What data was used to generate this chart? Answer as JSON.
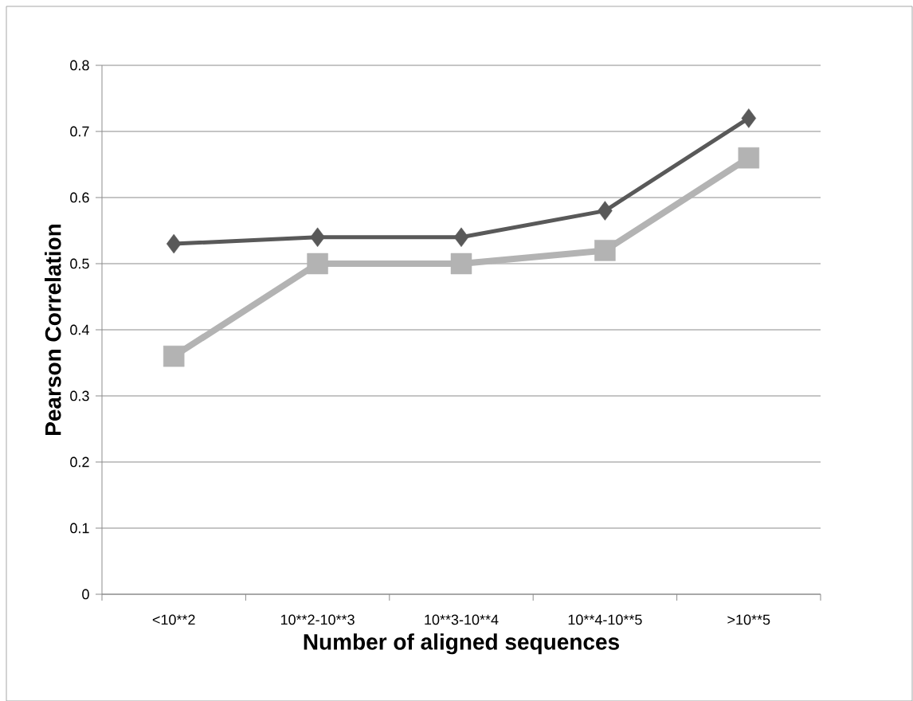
{
  "chart_data": {
    "type": "line",
    "xlabel": "Number of aligned sequences",
    "ylabel": "Pearson Correlation",
    "categories": [
      "<10**2",
      "10**2-10**3",
      "10**3-10**4",
      "10**4-10**5",
      ">10**5"
    ],
    "series": [
      {
        "color": "#595959",
        "marker": "diamond",
        "values": [
          0.53,
          0.54,
          0.54,
          0.58,
          0.72
        ]
      },
      {
        "color": "#b3b3b3",
        "marker": "square",
        "values": [
          0.36,
          0.5,
          0.5,
          0.52,
          0.66
        ]
      }
    ],
    "ylim": [
      0,
      0.8
    ],
    "yticks": [
      0,
      0.1,
      0.2,
      0.3,
      0.4,
      0.5,
      0.6,
      0.7,
      0.8
    ],
    "grid": "y",
    "legend": false,
    "line_style": "solid"
  }
}
